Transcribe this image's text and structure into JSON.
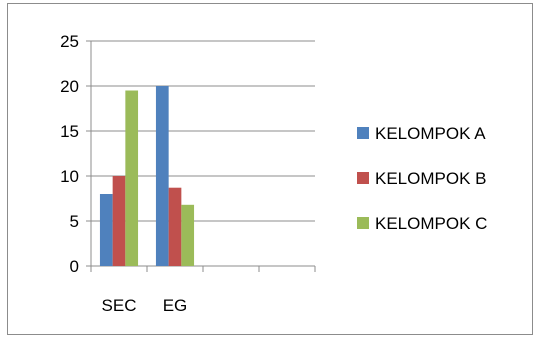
{
  "chart_data": {
    "type": "bar",
    "categories": [
      "SEC",
      "EG",
      "",
      ""
    ],
    "series": [
      {
        "name": "KELOMPOK A",
        "values": [
          8,
          20,
          null,
          null
        ],
        "color": "#4F81BD"
      },
      {
        "name": "KELOMPOK B",
        "values": [
          10,
          8.7,
          null,
          null
        ],
        "color": "#C0504D"
      },
      {
        "name": "KELOMPOK C",
        "values": [
          19.5,
          6.8,
          null,
          null
        ],
        "color": "#9BBB59"
      }
    ],
    "ylim": [
      0,
      25
    ],
    "yticks": [
      0,
      5,
      10,
      15,
      20,
      25
    ],
    "grid": true,
    "legend_position": "right"
  }
}
